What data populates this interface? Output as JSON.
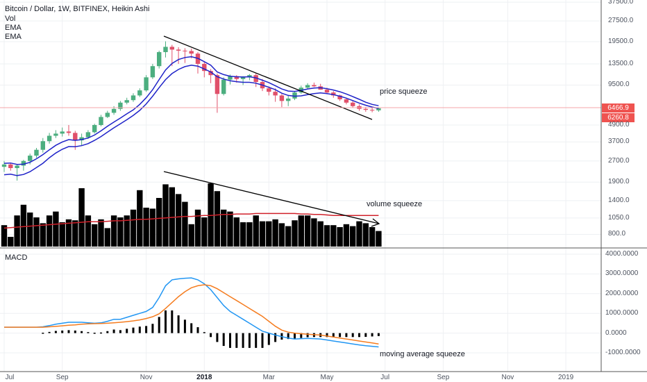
{
  "header": {
    "title": "Bitcoin / Dollar, 1W, BITFINEX, Heikin Ashi",
    "indicators": [
      "Vol",
      "EMA",
      "EMA"
    ],
    "macd_label": "MACD"
  },
  "annotations": {
    "price": "price squeeze",
    "volume": "volume squeeze",
    "macd": "moving average squeeze"
  },
  "price_badges": [
    {
      "label": "6466.9",
      "color": "#ef5350"
    },
    {
      "label": "6260.8",
      "color": "#ef5350"
    }
  ],
  "colors": {
    "up": "#4cae7f",
    "down": "#e0506a",
    "ema": "#1e22c8",
    "volume_ma": "#d0202a",
    "macd_line": "#2196f3",
    "signal_line": "#f57c1f",
    "grid": "#eef0f3"
  },
  "chart_data": [
    {
      "type": "candlestick",
      "title": "Bitcoin / Dollar, 1W, BITFINEX, Heikin Ashi",
      "scale": "log",
      "y_ticks": [
        "37500.0",
        "27500.0",
        "19500.0",
        "13500.0",
        "9500.0",
        "4900.0",
        "3700.0",
        "2700.0",
        "1900.0",
        "1400.0",
        "1050.0",
        "800.0"
      ],
      "y_tick_values": [
        37500,
        27500,
        19500,
        13500,
        9500,
        4900,
        3700,
        2700,
        1900,
        1400,
        1050,
        800
      ],
      "x_ticks": [
        "Jul",
        "Sep",
        "Nov",
        "2018",
        "Mar",
        "May",
        "Jul",
        "Sep",
        "Nov",
        "2019"
      ],
      "x_tick_weeks": [
        0,
        9,
        22,
        31,
        41,
        50,
        59,
        68,
        78,
        87
      ],
      "bold_ticks": [
        "2018"
      ],
      "ohlc": [
        [
          2450,
          2700,
          2250,
          2550
        ],
        [
          2550,
          2620,
          2300,
          2400
        ],
        [
          2400,
          2550,
          1950,
          2500
        ],
        [
          2500,
          2750,
          2300,
          2700
        ],
        [
          2700,
          3050,
          2550,
          2950
        ],
        [
          2950,
          3350,
          2850,
          3250
        ],
        [
          3250,
          3950,
          3100,
          3750
        ],
        [
          3750,
          4300,
          3600,
          4100
        ],
        [
          4100,
          4500,
          3950,
          4250
        ],
        [
          4250,
          4700,
          4050,
          4400
        ],
        [
          4400,
          4900,
          4100,
          4300
        ],
        [
          4300,
          4450,
          3250,
          3800
        ],
        [
          3800,
          4250,
          3500,
          4000
        ],
        [
          4000,
          4500,
          3900,
          4350
        ],
        [
          4350,
          5000,
          4250,
          4900
        ],
        [
          4900,
          5800,
          4800,
          5600
        ],
        [
          5600,
          6200,
          5500,
          6000
        ],
        [
          6000,
          6700,
          5800,
          6400
        ],
        [
          6400,
          7300,
          6200,
          7100
        ],
        [
          7100,
          7700,
          6900,
          7400
        ],
        [
          7400,
          8300,
          7200,
          8000
        ],
        [
          8000,
          9000,
          7800,
          8700
        ],
        [
          8700,
          11200,
          8500,
          10800
        ],
        [
          10800,
          13500,
          10500,
          13000
        ],
        [
          13000,
          16800,
          12500,
          16400
        ],
        [
          16400,
          19600,
          15000,
          17900
        ],
        [
          17900,
          18500,
          13000,
          17100
        ],
        [
          17100,
          17800,
          13500,
          16800
        ],
        [
          16800,
          17500,
          13700,
          16700
        ],
        [
          16700,
          17400,
          14800,
          16000
        ],
        [
          16000,
          16400,
          11500,
          13500
        ],
        [
          13500,
          14000,
          10800,
          12000
        ],
        [
          12000,
          12400,
          9800,
          11200
        ],
        [
          11200,
          11500,
          6000,
          8200
        ],
        [
          8200,
          10800,
          8000,
          10400
        ],
        [
          10400,
          11300,
          9600,
          11000
        ],
        [
          11000,
          11200,
          9900,
          10500
        ],
        [
          10500,
          11000,
          9500,
          10800
        ],
        [
          10800,
          11400,
          10300,
          11200
        ],
        [
          11200,
          11500,
          9200,
          10000
        ],
        [
          10000,
          10500,
          8600,
          9000
        ],
        [
          9000,
          9300,
          8000,
          8500
        ],
        [
          8500,
          9000,
          7200,
          8000
        ],
        [
          8000,
          8200,
          6600,
          7300
        ],
        [
          7300,
          8000,
          6700,
          7600
        ],
        [
          7600,
          8600,
          7400,
          8400
        ],
        [
          8400,
          9400,
          8200,
          9100
        ],
        [
          9100,
          9800,
          8900,
          9500
        ],
        [
          9500,
          9900,
          9200,
          9300
        ],
        [
          9300,
          9700,
          8800,
          8800
        ],
        [
          8800,
          9100,
          8200,
          8400
        ],
        [
          8400,
          8600,
          7700,
          8000
        ],
        [
          8000,
          8100,
          7300,
          7500
        ],
        [
          7500,
          7700,
          6900,
          7100
        ],
        [
          7100,
          7300,
          6500,
          6700
        ],
        [
          6700,
          6900,
          6200,
          6400
        ],
        [
          6400,
          6600,
          6100,
          6300
        ],
        [
          6300,
          6500,
          6050,
          6250
        ],
        [
          6250,
          6550,
          6100,
          6467
        ]
      ],
      "ema_fast": [
        2600,
        2610,
        2550,
        2560,
        2640,
        2800,
        3000,
        3250,
        3500,
        3700,
        3850,
        3800,
        3850,
        3950,
        4150,
        4450,
        4800,
        5150,
        5500,
        5900,
        6300,
        6900,
        7700,
        8800,
        10400,
        12200,
        13600,
        14500,
        15000,
        15200,
        14800,
        14000,
        13200,
        11800,
        11300,
        11000,
        10900,
        10850,
        10900,
        10700,
        10300,
        9900,
        9400,
        8900,
        8600,
        8550,
        8700,
        8900,
        9050,
        9100,
        8950,
        8750,
        8500,
        8200,
        7850,
        7500,
        7150,
        6900,
        6750
      ],
      "ema_slow": [
        2150,
        2170,
        2120,
        2160,
        2260,
        2420,
        2600,
        2850,
        3080,
        3280,
        3430,
        3420,
        3480,
        3600,
        3800,
        4050,
        4350,
        4680,
        5000,
        5350,
        5750,
        6250,
        6950,
        7900,
        9100,
        10400,
        11500,
        12300,
        12900,
        13200,
        13000,
        12400,
        11800,
        10900,
        10500,
        10200,
        10050,
        9950,
        9950,
        9800,
        9500,
        9150,
        8800,
        8300,
        8000,
        7900,
        7950,
        8100,
        8250,
        8350,
        8250,
        8100,
        7900,
        7650,
        7350,
        7050,
        6800,
        6600,
        6450
      ]
    },
    {
      "type": "bar",
      "title": "Vol",
      "values": [
        22,
        10,
        32,
        43,
        35,
        30,
        24,
        32,
        36,
        25,
        28,
        27,
        60,
        32,
        23,
        28,
        19,
        32,
        30,
        32,
        38,
        58,
        40,
        39,
        50,
        64,
        61,
        54,
        46,
        23,
        38,
        30,
        65,
        57,
        38,
        36,
        30,
        25,
        25,
        32,
        26,
        26,
        28,
        24,
        21,
        27,
        32,
        32,
        29,
        26,
        22,
        22,
        20,
        23,
        21,
        26,
        24,
        20,
        16
      ],
      "ma": [
        19,
        19.5,
        20,
        20.5,
        21,
        21.5,
        22,
        22.5,
        23,
        23.5,
        24,
        24.5,
        25,
        25.5,
        25.5,
        25.5,
        26,
        26.5,
        26.5,
        27,
        27.5,
        28,
        28,
        28.5,
        29,
        29.5,
        30,
        30.5,
        31,
        31,
        31.5,
        32,
        32,
        32.5,
        33,
        33,
        33.5,
        33.5,
        33.5,
        34,
        34,
        34,
        34,
        34,
        34,
        34,
        33.5,
        33.5,
        33,
        33,
        32.5,
        32,
        32,
        32,
        32,
        32,
        32,
        32,
        32
      ]
    },
    {
      "type": "line",
      "title": "MACD",
      "y_ticks": [
        "4000.0000",
        "3000.0000",
        "2000.0000",
        "1000.0000",
        "0.0000",
        "-1000.0000"
      ],
      "y_tick_values": [
        4000,
        3000,
        2000,
        1000,
        0,
        -1000
      ],
      "series": [
        {
          "key": "macd",
          "values": [
            300,
            300,
            300,
            300,
            300,
            300,
            320,
            380,
            450,
            500,
            550,
            550,
            550,
            520,
            500,
            520,
            600,
            700,
            700,
            800,
            900,
            1000,
            1100,
            1300,
            1800,
            2400,
            2700,
            2750,
            2780,
            2800,
            2700,
            2500,
            2200,
            1800,
            1400,
            1100,
            900,
            700,
            500,
            300,
            100,
            0,
            -100,
            -180,
            -250,
            -300,
            -280,
            -270,
            -280,
            -300,
            -350,
            -400,
            -450,
            -500,
            -550,
            -600,
            -640,
            -670,
            -700
          ]
        },
        {
          "key": "signal",
          "values": [
            300,
            300,
            300,
            300,
            300,
            300,
            300,
            320,
            340,
            370,
            400,
            420,
            450,
            470,
            480,
            490,
            500,
            520,
            550,
            580,
            620,
            670,
            740,
            830,
            980,
            1250,
            1550,
            1850,
            2100,
            2300,
            2400,
            2450,
            2400,
            2250,
            2050,
            1850,
            1650,
            1450,
            1250,
            1050,
            850,
            600,
            350,
            150,
            50,
            0,
            -30,
            -60,
            -80,
            -100,
            -150,
            -200,
            -250,
            -300,
            -350,
            -400,
            -450,
            -500,
            -550
          ]
        },
        {
          "key": "histogram",
          "values": [
            0,
            0,
            0,
            0,
            0,
            0,
            20,
            60,
            110,
            130,
            150,
            130,
            100,
            50,
            20,
            30,
            100,
            180,
            150,
            220,
            280,
            330,
            360,
            470,
            820,
            1150,
            1150,
            900,
            680,
            500,
            300,
            50,
            -200,
            -450,
            -650,
            -750,
            -750,
            -750,
            -750,
            -750,
            -750,
            -600,
            -450,
            -330,
            -300,
            -300,
            -250,
            -210,
            -200,
            -200,
            -200,
            -200,
            -200,
            -200,
            -200,
            -200,
            -190,
            -170,
            -150
          ]
        }
      ]
    }
  ]
}
